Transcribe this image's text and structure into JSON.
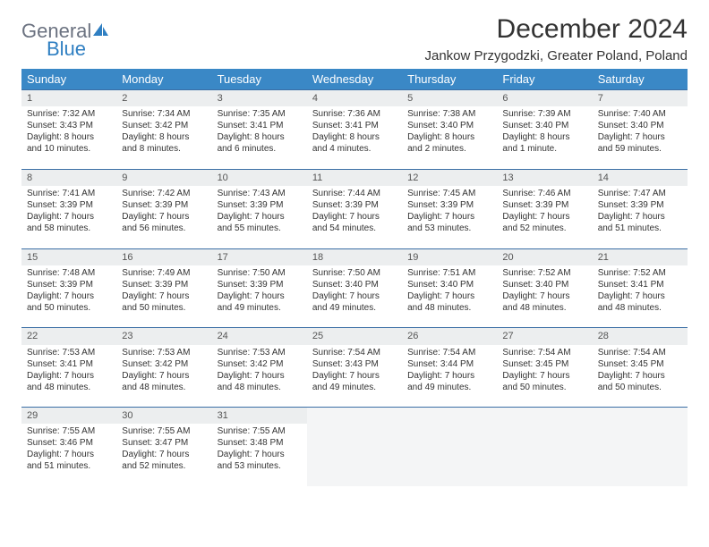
{
  "logo": {
    "line1": "General",
    "line2": "Blue"
  },
  "title": "December 2024",
  "location": "Jankow Przygodzki, Greater Poland, Poland",
  "colors": {
    "header_bg": "#3a88c6",
    "header_text": "#ffffff",
    "daynum_bg": "#eceeef",
    "border": "#3a6ea5",
    "logo_gray": "#6b7280",
    "logo_blue": "#2f7fc2"
  },
  "weekdays": [
    "Sunday",
    "Monday",
    "Tuesday",
    "Wednesday",
    "Thursday",
    "Friday",
    "Saturday"
  ],
  "weeks": [
    [
      {
        "n": "1",
        "sr": "7:32 AM",
        "ss": "3:43 PM",
        "dl": "8 hours and 10 minutes."
      },
      {
        "n": "2",
        "sr": "7:34 AM",
        "ss": "3:42 PM",
        "dl": "8 hours and 8 minutes."
      },
      {
        "n": "3",
        "sr": "7:35 AM",
        "ss": "3:41 PM",
        "dl": "8 hours and 6 minutes."
      },
      {
        "n": "4",
        "sr": "7:36 AM",
        "ss": "3:41 PM",
        "dl": "8 hours and 4 minutes."
      },
      {
        "n": "5",
        "sr": "7:38 AM",
        "ss": "3:40 PM",
        "dl": "8 hours and 2 minutes."
      },
      {
        "n": "6",
        "sr": "7:39 AM",
        "ss": "3:40 PM",
        "dl": "8 hours and 1 minute."
      },
      {
        "n": "7",
        "sr": "7:40 AM",
        "ss": "3:40 PM",
        "dl": "7 hours and 59 minutes."
      }
    ],
    [
      {
        "n": "8",
        "sr": "7:41 AM",
        "ss": "3:39 PM",
        "dl": "7 hours and 58 minutes."
      },
      {
        "n": "9",
        "sr": "7:42 AM",
        "ss": "3:39 PM",
        "dl": "7 hours and 56 minutes."
      },
      {
        "n": "10",
        "sr": "7:43 AM",
        "ss": "3:39 PM",
        "dl": "7 hours and 55 minutes."
      },
      {
        "n": "11",
        "sr": "7:44 AM",
        "ss": "3:39 PM",
        "dl": "7 hours and 54 minutes."
      },
      {
        "n": "12",
        "sr": "7:45 AM",
        "ss": "3:39 PM",
        "dl": "7 hours and 53 minutes."
      },
      {
        "n": "13",
        "sr": "7:46 AM",
        "ss": "3:39 PM",
        "dl": "7 hours and 52 minutes."
      },
      {
        "n": "14",
        "sr": "7:47 AM",
        "ss": "3:39 PM",
        "dl": "7 hours and 51 minutes."
      }
    ],
    [
      {
        "n": "15",
        "sr": "7:48 AM",
        "ss": "3:39 PM",
        "dl": "7 hours and 50 minutes."
      },
      {
        "n": "16",
        "sr": "7:49 AM",
        "ss": "3:39 PM",
        "dl": "7 hours and 50 minutes."
      },
      {
        "n": "17",
        "sr": "7:50 AM",
        "ss": "3:39 PM",
        "dl": "7 hours and 49 minutes."
      },
      {
        "n": "18",
        "sr": "7:50 AM",
        "ss": "3:40 PM",
        "dl": "7 hours and 49 minutes."
      },
      {
        "n": "19",
        "sr": "7:51 AM",
        "ss": "3:40 PM",
        "dl": "7 hours and 48 minutes."
      },
      {
        "n": "20",
        "sr": "7:52 AM",
        "ss": "3:40 PM",
        "dl": "7 hours and 48 minutes."
      },
      {
        "n": "21",
        "sr": "7:52 AM",
        "ss": "3:41 PM",
        "dl": "7 hours and 48 minutes."
      }
    ],
    [
      {
        "n": "22",
        "sr": "7:53 AM",
        "ss": "3:41 PM",
        "dl": "7 hours and 48 minutes."
      },
      {
        "n": "23",
        "sr": "7:53 AM",
        "ss": "3:42 PM",
        "dl": "7 hours and 48 minutes."
      },
      {
        "n": "24",
        "sr": "7:53 AM",
        "ss": "3:42 PM",
        "dl": "7 hours and 48 minutes."
      },
      {
        "n": "25",
        "sr": "7:54 AM",
        "ss": "3:43 PM",
        "dl": "7 hours and 49 minutes."
      },
      {
        "n": "26",
        "sr": "7:54 AM",
        "ss": "3:44 PM",
        "dl": "7 hours and 49 minutes."
      },
      {
        "n": "27",
        "sr": "7:54 AM",
        "ss": "3:45 PM",
        "dl": "7 hours and 50 minutes."
      },
      {
        "n": "28",
        "sr": "7:54 AM",
        "ss": "3:45 PM",
        "dl": "7 hours and 50 minutes."
      }
    ],
    [
      {
        "n": "29",
        "sr": "7:55 AM",
        "ss": "3:46 PM",
        "dl": "7 hours and 51 minutes."
      },
      {
        "n": "30",
        "sr": "7:55 AM",
        "ss": "3:47 PM",
        "dl": "7 hours and 52 minutes."
      },
      {
        "n": "31",
        "sr": "7:55 AM",
        "ss": "3:48 PM",
        "dl": "7 hours and 53 minutes."
      },
      null,
      null,
      null,
      null
    ]
  ],
  "labels": {
    "sunrise": "Sunrise:",
    "sunset": "Sunset:",
    "daylight": "Daylight:"
  }
}
